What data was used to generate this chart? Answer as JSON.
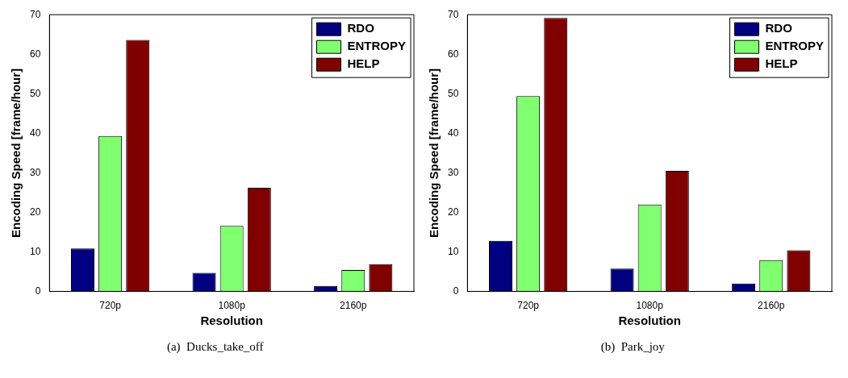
{
  "chart_data": [
    {
      "type": "bar",
      "categories": [
        "720p",
        "1080p",
        "2160p"
      ],
      "xlabel": "Resolution",
      "ylabel": "Encoding Speed [frame/hour]",
      "ylim": [
        0,
        70
      ],
      "yticks": [
        0,
        10,
        20,
        30,
        40,
        50,
        60,
        70
      ],
      "legend": "top right",
      "annotations": [
        "(a)  Ducks_take_off"
      ],
      "series": [
        {
          "name": "RDO",
          "color": "#000080",
          "values": [
            10.9,
            4.7,
            1.4
          ]
        },
        {
          "name": "ENTROPY",
          "color": "#80ff70",
          "values": [
            39.3,
            16.6,
            5.4
          ]
        },
        {
          "name": "HELP",
          "color": "#800000",
          "values": [
            63.6,
            26.2,
            6.9
          ]
        }
      ]
    },
    {
      "type": "bar",
      "categories": [
        "720p",
        "1080p",
        "2160p"
      ],
      "xlabel": "Resolution",
      "ylabel": "Encoding Speed [frame/hour]",
      "ylim": [
        0,
        70
      ],
      "yticks": [
        0,
        10,
        20,
        30,
        40,
        50,
        60,
        70
      ],
      "legend": "top right",
      "annotations": [
        "(b)  Park_joy"
      ],
      "series": [
        {
          "name": "RDO",
          "color": "#000080",
          "values": [
            12.8,
            5.8,
            2.0
          ]
        },
        {
          "name": "ENTROPY",
          "color": "#80ff70",
          "values": [
            49.4,
            22.0,
            7.9
          ]
        },
        {
          "name": "HELP",
          "color": "#800000",
          "values": [
            69.2,
            30.5,
            10.4
          ]
        }
      ]
    }
  ]
}
